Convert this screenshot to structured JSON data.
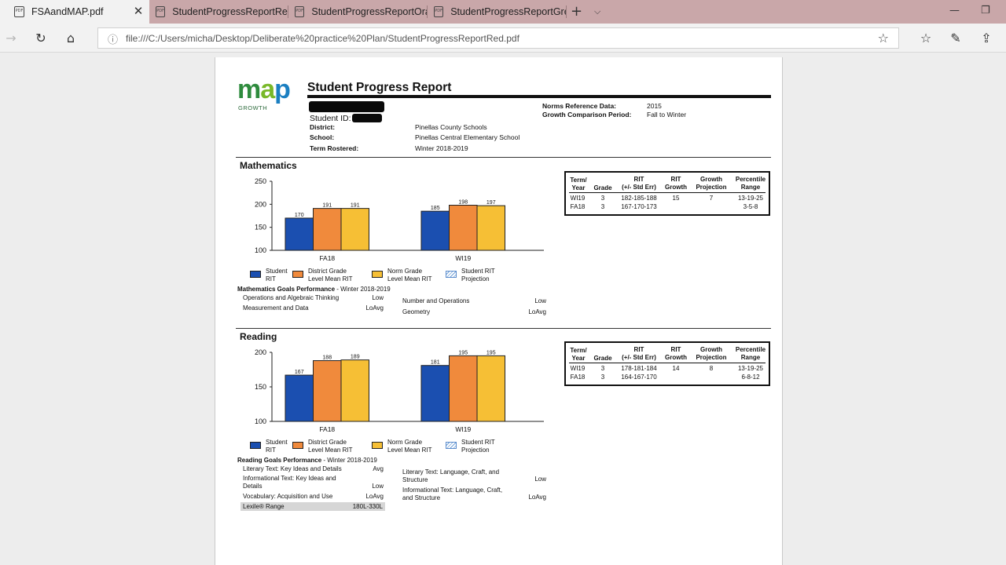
{
  "browser": {
    "tabs": [
      {
        "label": "FSAandMAP.pdf",
        "icon": "pdf-icon",
        "active": true
      },
      {
        "label": "StudentProgressReportRed.",
        "icon": "pdf-icon",
        "active": false
      },
      {
        "label": "StudentProgressReportOrar",
        "icon": "pdf-icon",
        "active": false
      },
      {
        "label": "StudentProgressReportGree",
        "icon": "pdf-icon",
        "active": false
      }
    ],
    "url": "file:///C:/Users/micha/Desktop/Deliberate%20practice%20Plan/StudentProgressReportRed.pdf"
  },
  "report": {
    "logo": {
      "text": "map",
      "sub": "GROWTH",
      "color_m": "#2e8b3d",
      "color_a": "#79b829",
      "color_p": "#1b7fc1"
    },
    "title": "Student Progress Report",
    "student_id_label": "Student ID:",
    "norms_label": "Norms Reference Data:",
    "norms_value": "2015",
    "growth_label": "Growth Comparison Period:",
    "growth_value": "Fall to Winter",
    "district_label": "District:",
    "district_value": "Pinellas County Schools",
    "school_label": "School:",
    "school_value": "Pinellas Central Elementary School",
    "term_label": "Term Rostered:",
    "term_value": "Winter 2018-2019",
    "legend": {
      "student": "Student\nRIT",
      "district": "District Grade\nLevel Mean RIT",
      "norm": "Norm Grade\nLevel Mean RIT",
      "projection": "Student RIT\nProjection"
    },
    "colors": {
      "student": "#1b4fb0",
      "district": "#f08a3c",
      "norm": "#f6bf35"
    },
    "table_headers": {
      "term": "Term/\nYear",
      "grade": "Grade",
      "rit": "RIT\n(+/- Std Err)",
      "growth": "RIT\nGrowth",
      "projection": "Growth\nProjection",
      "percentile": "Percentile\nRange"
    }
  },
  "math": {
    "title": "Mathematics",
    "goals_title_bold": "Mathematics Goals Performance",
    "goals_title_rest": " - Winter 2018-2019",
    "goals_left": [
      {
        "name": "Operations and Algebraic Thinking",
        "score": "Low"
      },
      {
        "name": "Measurement and Data",
        "score": "LoAvg"
      }
    ],
    "goals_right": [
      {
        "name": "Number and Operations",
        "score": "Low"
      },
      {
        "name": "Geometry",
        "score": "LoAvg"
      }
    ],
    "table_rows": [
      {
        "term": "WI19",
        "grade": "3",
        "rit": "182-185-188",
        "growth": "15",
        "projection": "7",
        "percentile": "13-19-25"
      },
      {
        "term": "FA18",
        "grade": "3",
        "rit": "167-170-173",
        "growth": "",
        "projection": "",
        "percentile": "3-5-8"
      }
    ]
  },
  "reading": {
    "title": "Reading",
    "goals_title_bold": "Reading Goals Performance",
    "goals_title_rest": " - Winter 2018-2019",
    "goals_left": [
      {
        "name": "Literary Text: Key Ideas and Details",
        "score": "Avg"
      },
      {
        "name": "Informational Text: Key Ideas and Details",
        "score": "Low"
      },
      {
        "name": "Vocabulary: Acquisition and Use",
        "score": "LoAvg"
      }
    ],
    "goals_right": [
      {
        "name": "Literary Text: Language, Craft, and Structure",
        "score": "Low"
      },
      {
        "name": "Informational Text: Language, Craft, and Structure",
        "score": "LoAvg"
      }
    ],
    "lexile_label": "Lexile® Range",
    "lexile_value": "180L-330L",
    "table_rows": [
      {
        "term": "WI19",
        "grade": "3",
        "rit": "178-181-184",
        "growth": "14",
        "projection": "8",
        "percentile": "13-19-25"
      },
      {
        "term": "FA18",
        "grade": "3",
        "rit": "164-167-170",
        "growth": "",
        "projection": "",
        "percentile": "6-8-12"
      }
    ]
  },
  "chart_data": [
    {
      "type": "bar",
      "title": "Mathematics",
      "categories": [
        "FA18",
        "WI19"
      ],
      "series": [
        {
          "name": "Student RIT",
          "values": [
            170,
            185
          ]
        },
        {
          "name": "District Grade Level Mean RIT",
          "values": [
            191,
            198
          ]
        },
        {
          "name": "Norm Grade Level Mean RIT",
          "values": [
            191,
            197
          ]
        }
      ],
      "ylim": [
        100,
        250
      ],
      "yticks": [
        100,
        150,
        200,
        250
      ]
    },
    {
      "type": "bar",
      "title": "Reading",
      "categories": [
        "FA18",
        "WI19"
      ],
      "series": [
        {
          "name": "Student RIT",
          "values": [
            167,
            181
          ]
        },
        {
          "name": "District Grade Level Mean RIT",
          "values": [
            188,
            195
          ]
        },
        {
          "name": "Norm Grade Level Mean RIT",
          "values": [
            189,
            195
          ]
        }
      ],
      "ylim": [
        100,
        200
      ],
      "yticks": [
        100,
        150,
        200
      ]
    }
  ]
}
